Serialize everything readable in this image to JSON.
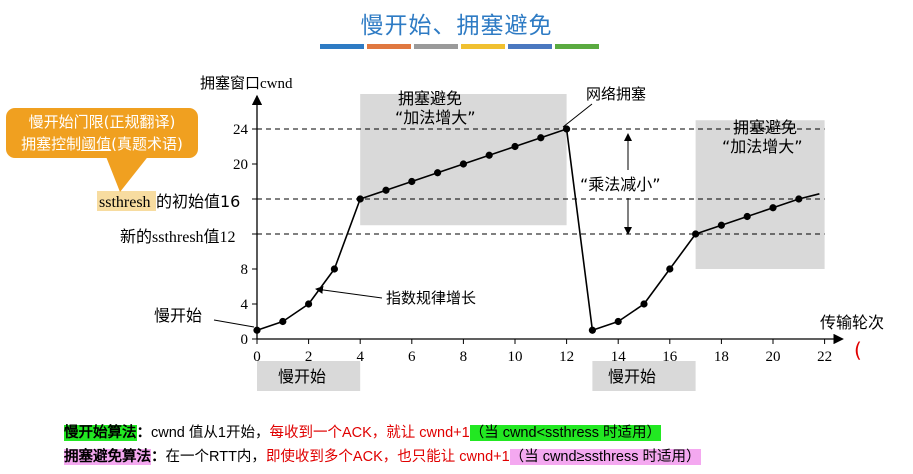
{
  "title": "慢开始、拥塞避免",
  "watermark": "",
  "colorbar": [
    "#2e7bc4",
    "#e07840",
    "#9a9a9a",
    "#f0c030",
    "#4a78c0",
    "#5aaa40"
  ],
  "y_axis_label": "拥塞窗口cwnd",
  "x_axis_label": "传输轮次",
  "region_labels": {
    "ca1_line1": "拥塞避免",
    "ca1_line2": "“加法增大”",
    "ca2_line1": "拥塞避免",
    "ca2_line2": "“加法增大”",
    "ss1": "慢开始",
    "ss2": "慢开始"
  },
  "annotations": {
    "congestion": "网络拥塞",
    "mult_decrease": "“乘法减小”",
    "exponential": "指数规律增长",
    "slow_start_point": "慢开始",
    "ssthresh_prefix": "ssthresh",
    "initial_value": "的初始值16",
    "new_ssthresh": "新的ssthresh值12",
    "stray_mark": "("
  },
  "callout": {
    "line1": "慢开始门限(正规翻译)",
    "line2_a": "拥塞控制",
    "line2_b": "阈值",
    "line2_c": "(真题术语)"
  },
  "bottom": {
    "l1_name": "慢开始算法",
    "l1_colon": "：",
    "l1_plain": "cwnd 值从1开始，",
    "l1_red": "每收到一个ACK，就让 cwnd+1",
    "l1_hl": "（当 cwnd<ssthress 时适用）",
    "l2_name": "拥塞避免算法",
    "l2_colon": "：",
    "l2_plain": "在一个RTT内，",
    "l2_red": "即使收到多个ACK，也只能让 cwnd+1",
    "l2_hl": "（当 cwnd≥ssthress 时适用）"
  },
  "chart_data": {
    "type": "line",
    "xlabel": "传输轮次",
    "ylabel": "拥塞窗口cwnd",
    "xlim": [
      0,
      22
    ],
    "ylim": [
      0,
      26
    ],
    "x_ticks": [
      0,
      2,
      4,
      6,
      8,
      10,
      12,
      14,
      16,
      18,
      20,
      22
    ],
    "y_ticks": [
      0,
      4,
      8,
      12,
      16,
      20,
      24
    ],
    "dashed_levels": [
      24,
      16,
      12
    ],
    "shaded_regions": [
      {
        "x": [
          4,
          12
        ],
        "y": [
          13,
          28
        ]
      },
      {
        "x": [
          17,
          22
        ],
        "y": [
          8,
          25
        ]
      }
    ],
    "bottom_regions": [
      [
        0,
        4
      ],
      [
        13,
        17
      ]
    ],
    "series": [
      {
        "x": [
          0,
          1,
          2,
          3,
          4,
          5,
          6,
          7,
          8,
          9,
          10,
          11,
          12,
          13,
          14,
          15,
          16,
          17,
          18,
          19,
          20,
          21
        ],
        "y": [
          1,
          2,
          4,
          8,
          16,
          17,
          18,
          19,
          20,
          21,
          22,
          23,
          24,
          1,
          2,
          4,
          8,
          12,
          13,
          14,
          15,
          16
        ]
      }
    ],
    "tail_to": [
      21.8,
      16.6
    ]
  }
}
